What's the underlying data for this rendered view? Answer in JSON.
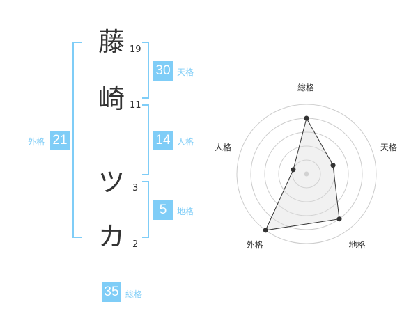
{
  "name_chars": [
    {
      "char": "藤",
      "strokes": "19"
    },
    {
      "char": "崎",
      "strokes": "11"
    },
    {
      "char": "ツ",
      "strokes": "3"
    },
    {
      "char": "カ",
      "strokes": "2"
    }
  ],
  "kaku": {
    "tenkaku": {
      "label": "天格",
      "value": "30"
    },
    "jinkaku": {
      "label": "人格",
      "value": "14"
    },
    "chikaku": {
      "label": "地格",
      "value": "5"
    },
    "gaikaku": {
      "label": "外格",
      "value": "21"
    },
    "soukaku": {
      "label": "総格",
      "value": "35"
    }
  },
  "accent_color": "#7fcdf7",
  "chart_data": {
    "type": "radar",
    "axes": [
      "総格",
      "天格",
      "地格",
      "外格",
      "人格"
    ],
    "values": [
      4,
      2,
      4,
      5,
      1
    ],
    "max": 5,
    "grid": "circles"
  }
}
